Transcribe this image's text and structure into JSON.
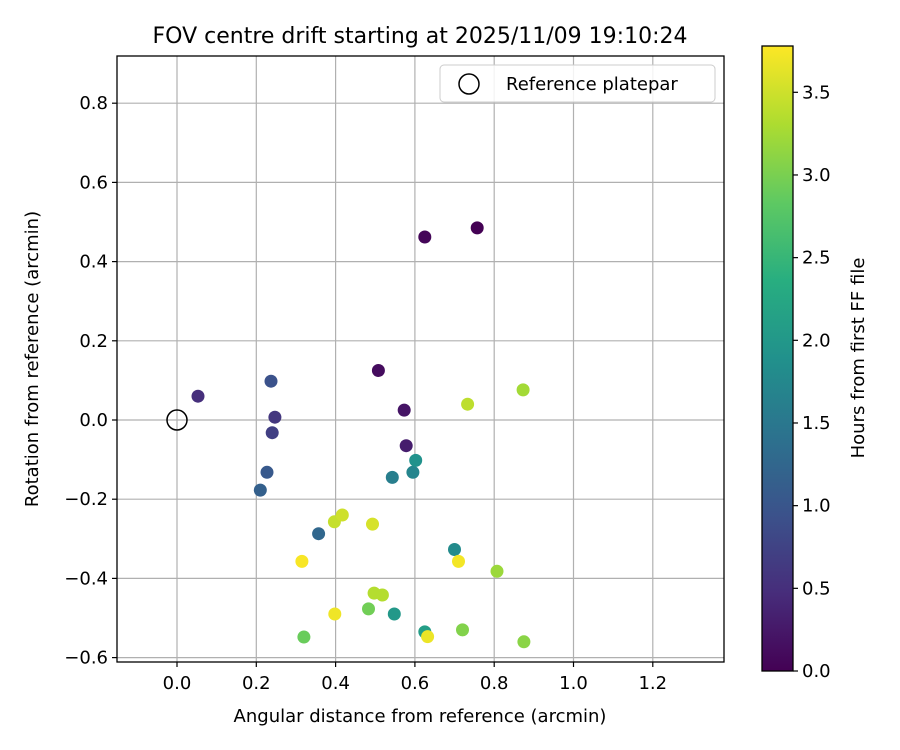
{
  "chart_data": {
    "type": "scatter",
    "title": "FOV centre drift starting at 2025/11/09 19:10:24",
    "xlabel": "Angular distance from reference (arcmin)",
    "ylabel": "Rotation from reference (arcmin)",
    "xlim": [
      -0.15,
      1.37
    ],
    "ylim": [
      -0.61,
      0.92
    ],
    "xticks": [
      0.0,
      0.2,
      0.4,
      0.6,
      0.8,
      1.0,
      1.2
    ],
    "xtick_labels": [
      "0.0",
      "0.2",
      "0.4",
      "0.6",
      "0.8",
      "1.0",
      "1.2"
    ],
    "yticks": [
      -0.6,
      -0.4,
      -0.2,
      0.0,
      0.2,
      0.4,
      0.6,
      0.8
    ],
    "ytick_labels": [
      "−0.6",
      "−0.4",
      "−0.2",
      "0.0",
      "0.2",
      "0.4",
      "0.6",
      "0.8"
    ],
    "grid": true,
    "legend": {
      "position": "top-right",
      "label": "Reference platepar"
    },
    "reference_point": {
      "x": 0.0,
      "y": 0.0
    },
    "colorbar": {
      "label": "Hours from first FF file",
      "colormap": "viridis",
      "range": [
        0.0,
        3.78
      ],
      "ticks": [
        0.0,
        0.5,
        1.0,
        1.5,
        2.0,
        2.5,
        3.0,
        3.5
      ],
      "tick_labels": [
        "0.0",
        "0.5",
        "1.0",
        "1.5",
        "2.0",
        "2.5",
        "3.0",
        "3.5"
      ]
    },
    "points": [
      {
        "x": 0.757,
        "y": 0.485,
        "hours": 0.0
      },
      {
        "x": 0.625,
        "y": 0.462,
        "hours": 0.05
      },
      {
        "x": 0.508,
        "y": 0.125,
        "hours": 0.12
      },
      {
        "x": 0.573,
        "y": 0.025,
        "hours": 0.2
      },
      {
        "x": 0.578,
        "y": -0.065,
        "hours": 0.3
      },
      {
        "x": 0.053,
        "y": 0.06,
        "hours": 0.5
      },
      {
        "x": 0.247,
        "y": 0.007,
        "hours": 0.6
      },
      {
        "x": 0.24,
        "y": -0.032,
        "hours": 0.7
      },
      {
        "x": 0.237,
        "y": 0.098,
        "hours": 0.95
      },
      {
        "x": 0.227,
        "y": -0.132,
        "hours": 1.05
      },
      {
        "x": 0.21,
        "y": -0.177,
        "hours": 1.15
      },
      {
        "x": 0.357,
        "y": -0.287,
        "hours": 1.25
      },
      {
        "x": 0.543,
        "y": -0.145,
        "hours": 1.6
      },
      {
        "x": 0.595,
        "y": -0.132,
        "hours": 1.7
      },
      {
        "x": 0.7,
        "y": -0.327,
        "hours": 1.8
      },
      {
        "x": 0.602,
        "y": -0.102,
        "hours": 1.9
      },
      {
        "x": 0.548,
        "y": -0.49,
        "hours": 2.0
      },
      {
        "x": 0.625,
        "y": -0.535,
        "hours": 2.1
      },
      {
        "x": 0.32,
        "y": -0.548,
        "hours": 2.9
      },
      {
        "x": 0.483,
        "y": -0.477,
        "hours": 2.95
      },
      {
        "x": 0.72,
        "y": -0.53,
        "hours": 3.05
      },
      {
        "x": 0.875,
        "y": -0.56,
        "hours": 3.1
      },
      {
        "x": 0.807,
        "y": -0.382,
        "hours": 3.2
      },
      {
        "x": 0.873,
        "y": 0.076,
        "hours": 3.25
      },
      {
        "x": 0.497,
        "y": -0.437,
        "hours": 3.35
      },
      {
        "x": 0.518,
        "y": -0.442,
        "hours": 3.35
      },
      {
        "x": 0.733,
        "y": 0.04,
        "hours": 3.4
      },
      {
        "x": 0.397,
        "y": -0.257,
        "hours": 3.45
      },
      {
        "x": 0.417,
        "y": -0.24,
        "hours": 3.5
      },
      {
        "x": 0.493,
        "y": -0.263,
        "hours": 3.55
      },
      {
        "x": 0.315,
        "y": -0.357,
        "hours": 3.75
      },
      {
        "x": 0.71,
        "y": -0.357,
        "hours": 3.72
      },
      {
        "x": 0.398,
        "y": -0.49,
        "hours": 3.7
      },
      {
        "x": 0.632,
        "y": -0.547,
        "hours": 3.68
      }
    ]
  }
}
